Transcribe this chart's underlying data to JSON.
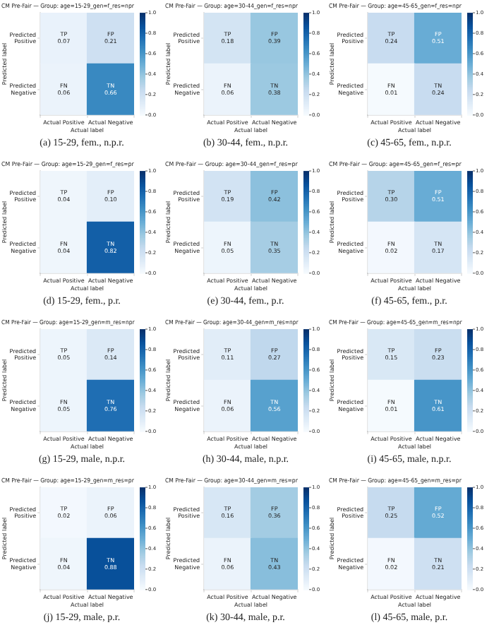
{
  "chart_data": [
    {
      "type": "heatmap",
      "title": "CM Pre-Fair — Group: age=15-29_gen=f_res=npr",
      "categories": [
        "Actual Positive",
        "Actual Negative"
      ],
      "y_categories": [
        "Predicted Positive",
        "Predicted Negative"
      ],
      "cells": [
        [
          0.07,
          0.21
        ],
        [
          0.06,
          0.66
        ]
      ],
      "cell_labels": [
        [
          "TP\n0.07",
          "FP\n0.21"
        ],
        [
          "FN\n0.06",
          "TN\n0.66"
        ]
      ],
      "xlabel": "Actual label",
      "ylabel": "Predicted label",
      "clim": [
        0,
        1
      ],
      "cticks": [
        {
          "value": 0,
          "label": "0.0"
        },
        {
          "value": 0.2,
          "label": "0.2"
        },
        {
          "value": 0.4,
          "label": "0.4"
        },
        {
          "value": 0.6,
          "label": "0.6"
        },
        {
          "value": 0.8,
          "label": "0.8"
        },
        {
          "value": 1,
          "label": "1.0"
        }
      ],
      "annotations": [
        "(a) 15-29, fem., n.p.r."
      ]
    },
    {
      "type": "heatmap",
      "title": "CM Pre-Fair — Group: age=30-44_gen=f_res=npr",
      "categories": [
        "Actual Positive",
        "Actual Negative"
      ],
      "y_categories": [
        "Predicted Positive",
        "Predicted Negative"
      ],
      "cells": [
        [
          0.18,
          0.39
        ],
        [
          0.06,
          0.38
        ]
      ],
      "cell_labels": [
        [
          "TP\n0.18",
          "FP\n0.39"
        ],
        [
          "FN\n0.06",
          "TN\n0.38"
        ]
      ],
      "xlabel": "Actual label",
      "ylabel": "Predicted label",
      "clim": [
        0,
        1
      ],
      "cticks": [
        {
          "value": 0,
          "label": "0.0"
        },
        {
          "value": 0.2,
          "label": "0.2"
        },
        {
          "value": 0.4,
          "label": "0.4"
        },
        {
          "value": 0.6,
          "label": "0.6"
        },
        {
          "value": 0.8,
          "label": "0.8"
        },
        {
          "value": 1,
          "label": "1.0"
        }
      ],
      "annotations": [
        "(b) 30-44, fem., n.p.r."
      ]
    },
    {
      "type": "heatmap",
      "title": "CM Pre-Fair — Group: age=45-65_gen=f_res=npr",
      "categories": [
        "Actual Positive",
        "Actual Negative"
      ],
      "y_categories": [
        "Predicted Positive",
        "Predicted Negative"
      ],
      "cells": [
        [
          0.24,
          0.51
        ],
        [
          0.01,
          0.24
        ]
      ],
      "cell_labels": [
        [
          "TP\n0.24",
          "FP\n0.51"
        ],
        [
          "FN\n0.01",
          "TN\n0.24"
        ]
      ],
      "xlabel": "Actual label",
      "ylabel": "Predicted label",
      "clim": [
        0,
        1
      ],
      "cticks": [
        {
          "value": 0,
          "label": "0.0"
        },
        {
          "value": 0.2,
          "label": "0.2"
        },
        {
          "value": 0.4,
          "label": "0.4"
        },
        {
          "value": 0.6,
          "label": "0.6"
        },
        {
          "value": 0.8,
          "label": "0.8"
        },
        {
          "value": 1,
          "label": "1.0"
        }
      ],
      "annotations": [
        "(c) 45-65, fem., n.p.r."
      ]
    },
    {
      "type": "heatmap",
      "title": "CM Pre-Fair — Group: age=15-29_gen=f_res=pr",
      "categories": [
        "Actual Positive",
        "Actual Negative"
      ],
      "y_categories": [
        "Predicted Positive",
        "Predicted Negative"
      ],
      "cells": [
        [
          0.04,
          0.1
        ],
        [
          0.04,
          0.82
        ]
      ],
      "cell_labels": [
        [
          "TP\n0.04",
          "FP\n0.10"
        ],
        [
          "FN\n0.04",
          "TN\n0.82"
        ]
      ],
      "xlabel": "Actual label",
      "ylabel": "Predicted label",
      "clim": [
        0,
        1
      ],
      "cticks": [
        {
          "value": 0,
          "label": "0.0"
        },
        {
          "value": 0.2,
          "label": "0.2"
        },
        {
          "value": 0.4,
          "label": "0.4"
        },
        {
          "value": 0.6,
          "label": "0.6"
        },
        {
          "value": 0.8,
          "label": "0.8"
        },
        {
          "value": 1,
          "label": "1.0"
        }
      ],
      "annotations": [
        "(d) 15-29, fem., p.r."
      ]
    },
    {
      "type": "heatmap",
      "title": "CM Pre-Fair — Group: age=30-44_gen=f_res=pr",
      "categories": [
        "Actual Positive",
        "Actual Negative"
      ],
      "y_categories": [
        "Predicted Positive",
        "Predicted Negative"
      ],
      "cells": [
        [
          0.19,
          0.42
        ],
        [
          0.05,
          0.35
        ]
      ],
      "cell_labels": [
        [
          "TP\n0.19",
          "FP\n0.42"
        ],
        [
          "FN\n0.05",
          "TN\n0.35"
        ]
      ],
      "xlabel": "Actual label",
      "ylabel": "Predicted label",
      "clim": [
        0,
        1
      ],
      "cticks": [
        {
          "value": 0,
          "label": "0.0"
        },
        {
          "value": 0.2,
          "label": "0.2"
        },
        {
          "value": 0.4,
          "label": "0.4"
        },
        {
          "value": 0.6,
          "label": "0.6"
        },
        {
          "value": 0.8,
          "label": "0.8"
        },
        {
          "value": 1,
          "label": "1.0"
        }
      ],
      "annotations": [
        "(e) 30-44, fem., p.r."
      ]
    },
    {
      "type": "heatmap",
      "title": "CM Pre-Fair — Group: age=45-65_gen=f_res=pr",
      "categories": [
        "Actual Positive",
        "Actual Negative"
      ],
      "y_categories": [
        "Predicted Positive",
        "Predicted Negative"
      ],
      "cells": [
        [
          0.3,
          0.51
        ],
        [
          0.02,
          0.17
        ]
      ],
      "cell_labels": [
        [
          "TP\n0.30",
          "FP\n0.51"
        ],
        [
          "FN\n0.02",
          "TN\n0.17"
        ]
      ],
      "xlabel": "Actual label",
      "ylabel": "Predicted label",
      "clim": [
        0,
        1
      ],
      "cticks": [
        {
          "value": 0,
          "label": "0.0"
        },
        {
          "value": 0.2,
          "label": "0.2"
        },
        {
          "value": 0.4,
          "label": "0.4"
        },
        {
          "value": 0.6,
          "label": "0.6"
        },
        {
          "value": 0.8,
          "label": "0.8"
        },
        {
          "value": 1,
          "label": "1.0"
        }
      ],
      "annotations": [
        "(f) 45-65, fem., p.r."
      ]
    },
    {
      "type": "heatmap",
      "title": "CM Pre-Fair — Group: age=15-29_gen=m_res=npr",
      "categories": [
        "Actual Positive",
        "Actual Negative"
      ],
      "y_categories": [
        "Predicted Positive",
        "Predicted Negative"
      ],
      "cells": [
        [
          0.05,
          0.14
        ],
        [
          0.05,
          0.76
        ]
      ],
      "cell_labels": [
        [
          "TP\n0.05",
          "FP\n0.14"
        ],
        [
          "FN\n0.05",
          "TN\n0.76"
        ]
      ],
      "xlabel": "Actual label",
      "ylabel": "Predicted label",
      "clim": [
        0,
        1
      ],
      "cticks": [
        {
          "value": 0,
          "label": "0.0"
        },
        {
          "value": 0.2,
          "label": "0.2"
        },
        {
          "value": 0.4,
          "label": "0.4"
        },
        {
          "value": 0.6,
          "label": "0.6"
        },
        {
          "value": 0.8,
          "label": "0.8"
        },
        {
          "value": 1,
          "label": "1.0"
        }
      ],
      "annotations": [
        "(g) 15-29, male, n.p.r."
      ]
    },
    {
      "type": "heatmap",
      "title": "CM Pre-Fair — Group: age=30-44_gen=m_res=npr",
      "categories": [
        "Actual Positive",
        "Actual Negative"
      ],
      "y_categories": [
        "Predicted Positive",
        "Predicted Negative"
      ],
      "cells": [
        [
          0.11,
          0.27
        ],
        [
          0.06,
          0.56
        ]
      ],
      "cell_labels": [
        [
          "TP\n0.11",
          "FP\n0.27"
        ],
        [
          "FN\n0.06",
          "TN\n0.56"
        ]
      ],
      "xlabel": "Actual label",
      "ylabel": "Predicted label",
      "clim": [
        0,
        1
      ],
      "cticks": [
        {
          "value": 0,
          "label": "0.0"
        },
        {
          "value": 0.2,
          "label": "0.2"
        },
        {
          "value": 0.4,
          "label": "0.4"
        },
        {
          "value": 0.6,
          "label": "0.6"
        },
        {
          "value": 0.8,
          "label": "0.8"
        },
        {
          "value": 1,
          "label": "1.0"
        }
      ],
      "annotations": [
        "(h) 30-44, male, n.p.r."
      ]
    },
    {
      "type": "heatmap",
      "title": "CM Pre-Fair — Group: age=45-65_gen=m_res=npr",
      "categories": [
        "Actual Positive",
        "Actual Negative"
      ],
      "y_categories": [
        "Predicted Positive",
        "Predicted Negative"
      ],
      "cells": [
        [
          0.15,
          0.23
        ],
        [
          0.01,
          0.61
        ]
      ],
      "cell_labels": [
        [
          "TP\n0.15",
          "FP\n0.23"
        ],
        [
          "FN\n0.01",
          "TN\n0.61"
        ]
      ],
      "xlabel": "Actual label",
      "ylabel": "Predicted label",
      "clim": [
        0,
        1
      ],
      "cticks": [
        {
          "value": 0,
          "label": "0.0"
        },
        {
          "value": 0.2,
          "label": "0.2"
        },
        {
          "value": 0.4,
          "label": "0.4"
        },
        {
          "value": 0.6,
          "label": "0.6"
        },
        {
          "value": 0.8,
          "label": "0.8"
        },
        {
          "value": 1,
          "label": "1.0"
        }
      ],
      "annotations": [
        "(i) 45-65, male, n.p.r."
      ]
    },
    {
      "type": "heatmap",
      "title": "CM Pre-Fair — Group: age=15-29_gen=m_res=pr",
      "categories": [
        "Actual Positive",
        "Actual Negative"
      ],
      "y_categories": [
        "Predicted Positive",
        "Predicted Negative"
      ],
      "cells": [
        [
          0.02,
          0.06
        ],
        [
          0.04,
          0.88
        ]
      ],
      "cell_labels": [
        [
          "TP\n0.02",
          "FP\n0.06"
        ],
        [
          "FN\n0.04",
          "TN\n0.88"
        ]
      ],
      "xlabel": "Actual label",
      "ylabel": "Predicted label",
      "clim": [
        0,
        1
      ],
      "cticks": [
        {
          "value": 0,
          "label": "0.0"
        },
        {
          "value": 0.2,
          "label": "0.2"
        },
        {
          "value": 0.4,
          "label": "0.4"
        },
        {
          "value": 0.6,
          "label": "0.6"
        },
        {
          "value": 0.8,
          "label": "0.8"
        },
        {
          "value": 1,
          "label": "1.0"
        }
      ],
      "annotations": [
        "(j) 15-29, male, p.r."
      ]
    },
    {
      "type": "heatmap",
      "title": "CM Pre-Fair — Group: age=30-44_gen=m_res=pr",
      "categories": [
        "Actual Positive",
        "Actual Negative"
      ],
      "y_categories": [
        "Predicted Positive",
        "Predicted Negative"
      ],
      "cells": [
        [
          0.16,
          0.36
        ],
        [
          0.06,
          0.43
        ]
      ],
      "cell_labels": [
        [
          "TP\n0.16",
          "FP\n0.36"
        ],
        [
          "FN\n0.06",
          "TN\n0.43"
        ]
      ],
      "xlabel": "Actual label",
      "ylabel": "Predicted label",
      "clim": [
        0,
        1
      ],
      "cticks": [
        {
          "value": 0,
          "label": "0.0"
        },
        {
          "value": 0.2,
          "label": "0.2"
        },
        {
          "value": 0.4,
          "label": "0.4"
        },
        {
          "value": 0.6,
          "label": "0.6"
        },
        {
          "value": 0.8,
          "label": "0.8"
        },
        {
          "value": 1,
          "label": "1.0"
        }
      ],
      "annotations": [
        "(k) 30-44, male, p.r."
      ]
    },
    {
      "type": "heatmap",
      "title": "CM Pre-Fair — Group: age=45-65_gen=m_res=pr",
      "categories": [
        "Actual Positive",
        "Actual Negative"
      ],
      "y_categories": [
        "Predicted Positive",
        "Predicted Negative"
      ],
      "cells": [
        [
          0.25,
          0.52
        ],
        [
          0.02,
          0.21
        ]
      ],
      "cell_labels": [
        [
          "TP\n0.25",
          "FP\n0.52"
        ],
        [
          "FN\n0.02",
          "TN\n0.21"
        ]
      ],
      "xlabel": "Actual label",
      "ylabel": "Predicted label",
      "clim": [
        0,
        1
      ],
      "cticks": [
        {
          "value": 0,
          "label": "0.0"
        },
        {
          "value": 0.2,
          "label": "0.2"
        },
        {
          "value": 0.4,
          "label": "0.4"
        },
        {
          "value": 0.6,
          "label": "0.6"
        },
        {
          "value": 0.8,
          "label": "0.8"
        },
        {
          "value": 1,
          "label": "1.0"
        }
      ],
      "annotations": [
        "(l) 45-65, male, p.r."
      ]
    }
  ]
}
